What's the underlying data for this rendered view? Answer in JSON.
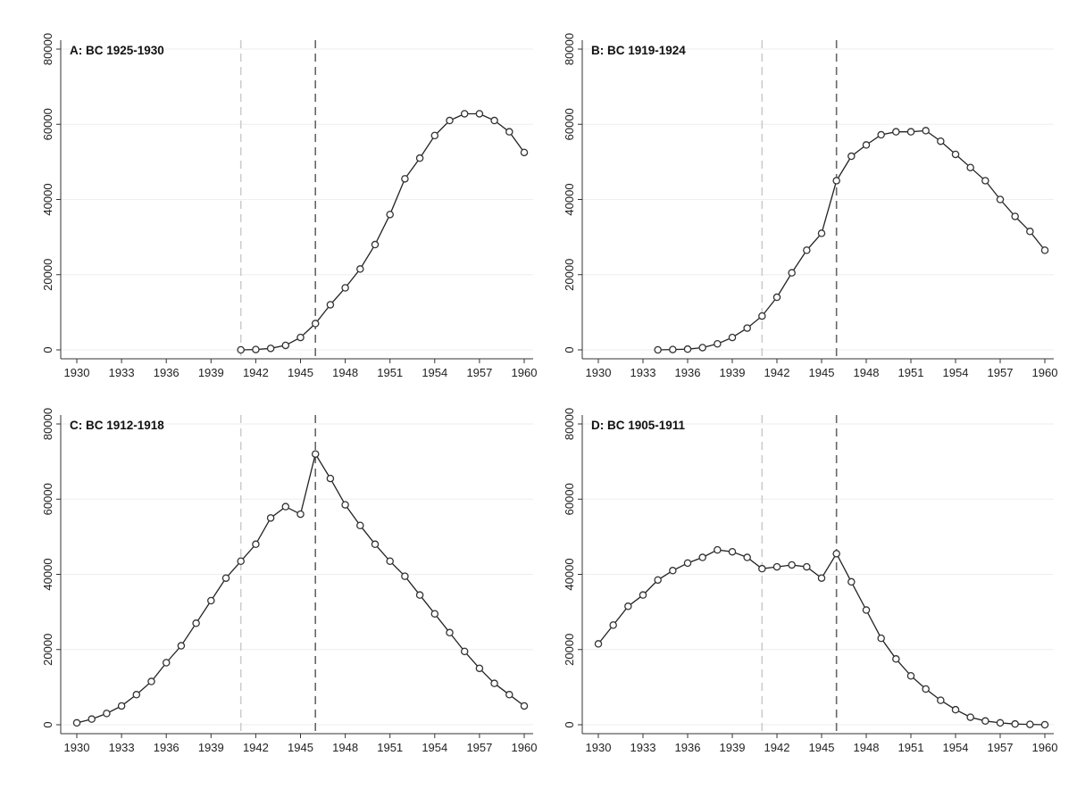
{
  "chart_data": [
    {
      "type": "line",
      "title": "A: BC 1925-1930",
      "xlim": [
        1930,
        1960
      ],
      "ylim": [
        0,
        80000
      ],
      "x_ticks": [
        "1930",
        "1933",
        "1936",
        "1939",
        "1942",
        "1945",
        "1948",
        "1951",
        "1954",
        "1957",
        "1960"
      ],
      "y_ticks": [
        "0",
        "20000",
        "40000",
        "60000",
        "80000"
      ],
      "grid": true,
      "reference_lines_x": [
        1941,
        1946
      ],
      "series": [
        {
          "x": [
            1941,
            1942,
            1943,
            1944,
            1945,
            1946,
            1947,
            1948,
            1949,
            1950,
            1951,
            1952,
            1953,
            1954,
            1955,
            1956,
            1957,
            1958,
            1959,
            1960
          ],
          "values": [
            0,
            100,
            400,
            1200,
            3300,
            7000,
            12000,
            16500,
            21500,
            28000,
            36000,
            45500,
            51000,
            57000,
            61000,
            62800,
            62800,
            61000,
            58000,
            52500
          ]
        }
      ]
    },
    {
      "type": "line",
      "title": "B: BC 1919-1924",
      "xlim": [
        1930,
        1960
      ],
      "ylim": [
        0,
        80000
      ],
      "x_ticks": [
        "1930",
        "1933",
        "1936",
        "1939",
        "1942",
        "1945",
        "1948",
        "1951",
        "1954",
        "1957",
        "1960"
      ],
      "y_ticks": [
        "0",
        "20000",
        "40000",
        "60000",
        "80000"
      ],
      "grid": true,
      "reference_lines_x": [
        1941,
        1946
      ],
      "series": [
        {
          "x": [
            1934,
            1935,
            1936,
            1937,
            1938,
            1939,
            1940,
            1941,
            1942,
            1943,
            1944,
            1945,
            1946,
            1947,
            1948,
            1949,
            1950,
            1951,
            1952,
            1953,
            1954,
            1955,
            1956,
            1957,
            1958,
            1959,
            1960
          ],
          "values": [
            0,
            100,
            200,
            600,
            1600,
            3300,
            5800,
            9000,
            14000,
            20500,
            26500,
            31000,
            45000,
            51500,
            54500,
            57200,
            58000,
            58000,
            58300,
            55500,
            52000,
            48500,
            45000,
            40000,
            35500,
            31500,
            26500
          ]
        }
      ]
    },
    {
      "type": "line",
      "title": "C: BC 1912-1918",
      "xlim": [
        1930,
        1960
      ],
      "ylim": [
        0,
        80000
      ],
      "x_ticks": [
        "1930",
        "1933",
        "1936",
        "1939",
        "1942",
        "1945",
        "1948",
        "1951",
        "1954",
        "1957",
        "1960"
      ],
      "y_ticks": [
        "0",
        "20000",
        "40000",
        "60000",
        "80000"
      ],
      "grid": true,
      "reference_lines_x": [
        1941,
        1946
      ],
      "series": [
        {
          "x": [
            1930,
            1931,
            1932,
            1933,
            1934,
            1935,
            1936,
            1937,
            1938,
            1939,
            1940,
            1941,
            1942,
            1943,
            1944,
            1945,
            1946,
            1947,
            1948,
            1949,
            1950,
            1951,
            1952,
            1953,
            1954,
            1955,
            1956,
            1957,
            1958,
            1959,
            1960
          ],
          "values": [
            500,
            1500,
            3000,
            5000,
            8000,
            11500,
            16500,
            21000,
            27000,
            33000,
            39000,
            43500,
            48000,
            55000,
            58000,
            56000,
            72000,
            65500,
            58500,
            53000,
            48000,
            43500,
            39500,
            34500,
            29500,
            24500,
            19500,
            15000,
            11000,
            8000,
            5000
          ]
        }
      ]
    },
    {
      "type": "line",
      "title": "D: BC 1905-1911",
      "xlim": [
        1930,
        1960
      ],
      "ylim": [
        0,
        80000
      ],
      "x_ticks": [
        "1930",
        "1933",
        "1936",
        "1939",
        "1942",
        "1945",
        "1948",
        "1951",
        "1954",
        "1957",
        "1960"
      ],
      "y_ticks": [
        "0",
        "20000",
        "40000",
        "60000",
        "80000"
      ],
      "grid": true,
      "reference_lines_x": [
        1941,
        1946
      ],
      "series": [
        {
          "x": [
            1930,
            1931,
            1932,
            1933,
            1934,
            1935,
            1936,
            1937,
            1938,
            1939,
            1940,
            1941,
            1942,
            1943,
            1944,
            1945,
            1946,
            1947,
            1948,
            1949,
            1950,
            1951,
            1952,
            1953,
            1954,
            1955,
            1956,
            1957,
            1958,
            1959,
            1960
          ],
          "values": [
            21500,
            26500,
            31500,
            34500,
            38500,
            41000,
            43000,
            44500,
            46500,
            46000,
            44500,
            41500,
            42000,
            42500,
            42000,
            39000,
            45500,
            38000,
            30500,
            23000,
            17500,
            13000,
            9500,
            6500,
            4000,
            2000,
            1000,
            500,
            200,
            100,
            0
          ]
        }
      ]
    }
  ]
}
